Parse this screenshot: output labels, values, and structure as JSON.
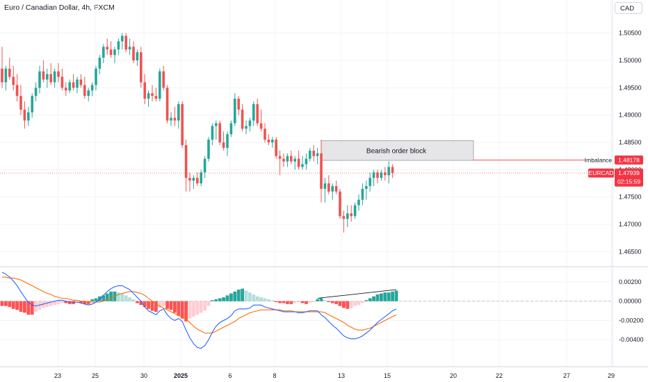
{
  "header": {
    "title": "Euro / Canadian Dollar, 4h, FXCM",
    "currency": "CAD"
  },
  "colors": {
    "up": "#26a69a",
    "down": "#ef5350",
    "grid": "#f0f3fa",
    "macd_line": "#2962ff",
    "signal_line": "#ff6d00",
    "hist_up_strong": "#26a69a",
    "hist_up_weak": "#b2dfdb",
    "hist_down_strong": "#ff5252",
    "hist_down_weak": "#ffcdd2"
  },
  "chart_data": [
    {
      "type": "candlestick",
      "title": "Euro / Canadian Dollar, 4h, FXCM",
      "y_ticks": [
        "1.50500",
        "1.50000",
        "1.49500",
        "1.49000",
        "1.48500",
        "1.48000",
        "1.47500",
        "1.47000",
        "1.46500"
      ],
      "ylim": [
        1.4625,
        1.5075
      ],
      "x_ticks": [
        "23",
        "25",
        "30",
        "2025",
        "6",
        "8",
        "13",
        "15",
        "20",
        "22",
        "27",
        "29"
      ],
      "grid": true,
      "candles_ohlc": [
        [
          1.4985,
          1.5025,
          1.495,
          1.496
        ],
        [
          1.496,
          1.499,
          1.4945,
          1.4985
        ],
        [
          1.4985,
          1.5005,
          1.4965,
          1.497
        ],
        [
          1.497,
          1.499,
          1.4945,
          1.4955
        ],
        [
          1.4955,
          1.4975,
          1.4925,
          1.4935
        ],
        [
          1.4935,
          1.4955,
          1.49,
          1.491
        ],
        [
          1.491,
          1.4925,
          1.4875,
          1.489
        ],
        [
          1.489,
          1.4915,
          1.488,
          1.4905
        ],
        [
          1.4905,
          1.494,
          1.4895,
          1.4935
        ],
        [
          1.4935,
          1.496,
          1.4925,
          1.495
        ],
        [
          1.495,
          1.499,
          1.494,
          1.498
        ],
        [
          1.498,
          1.5,
          1.496,
          1.4965
        ],
        [
          1.4965,
          1.4985,
          1.495,
          1.4975
        ],
        [
          1.4975,
          1.4995,
          1.4955,
          1.496
        ],
        [
          1.496,
          1.4985,
          1.495,
          1.498
        ],
        [
          1.498,
          1.4995,
          1.496,
          1.497
        ],
        [
          1.497,
          1.4985,
          1.4945,
          1.495
        ],
        [
          1.495,
          1.496,
          1.4935,
          1.4945
        ],
        [
          1.4945,
          1.4965,
          1.494,
          1.496
        ],
        [
          1.496,
          1.4975,
          1.4945,
          1.495
        ],
        [
          1.495,
          1.497,
          1.494,
          1.4965
        ],
        [
          1.4965,
          1.4975,
          1.495,
          1.4955
        ],
        [
          1.4955,
          1.497,
          1.493,
          1.4935
        ],
        [
          1.4935,
          1.495,
          1.4925,
          1.4945
        ],
        [
          1.4945,
          1.496,
          1.4935,
          1.4955
        ],
        [
          1.4955,
          1.499,
          1.4945,
          1.4985
        ],
        [
          1.4985,
          1.501,
          1.4975,
          1.5005
        ],
        [
          1.5005,
          1.503,
          1.4995,
          1.5025
        ],
        [
          1.5025,
          1.504,
          1.501,
          1.502
        ],
        [
          1.502,
          1.5035,
          1.5005,
          1.501
        ],
        [
          1.501,
          1.5025,
          1.4995,
          1.502
        ],
        [
          1.502,
          1.504,
          1.501,
          1.5035
        ],
        [
          1.5035,
          1.505,
          1.502,
          1.5045
        ],
        [
          1.5045,
          1.505,
          1.5015,
          1.502
        ],
        [
          1.502,
          1.504,
          1.501,
          1.5025
        ],
        [
          1.5025,
          1.5035,
          1.4995,
          1.5
        ],
        [
          1.5,
          1.502,
          1.499,
          1.5015
        ],
        [
          1.5015,
          1.5025,
          1.495,
          1.496
        ],
        [
          1.496,
          1.4975,
          1.492,
          1.493
        ],
        [
          1.493,
          1.4945,
          1.4915,
          1.494
        ],
        [
          1.494,
          1.4955,
          1.4925,
          1.4935
        ],
        [
          1.4935,
          1.495,
          1.4925,
          1.493
        ],
        [
          1.493,
          1.4985,
          1.4925,
          1.498
        ],
        [
          1.498,
          1.499,
          1.4945,
          1.495
        ],
        [
          1.495,
          1.4955,
          1.4885,
          1.489
        ],
        [
          1.489,
          1.4905,
          1.488,
          1.4895
        ],
        [
          1.4895,
          1.4915,
          1.488,
          1.489
        ],
        [
          1.489,
          1.4925,
          1.4875,
          1.492
        ],
        [
          1.492,
          1.4925,
          1.484,
          1.4845
        ],
        [
          1.4845,
          1.4855,
          1.476,
          1.4785
        ],
        [
          1.4785,
          1.4795,
          1.476,
          1.478
        ],
        [
          1.478,
          1.479,
          1.4765,
          1.4785
        ],
        [
          1.4785,
          1.4795,
          1.477,
          1.4775
        ],
        [
          1.4775,
          1.48,
          1.477,
          1.4795
        ],
        [
          1.4795,
          1.4825,
          1.4785,
          1.482
        ],
        [
          1.482,
          1.486,
          1.4815,
          1.4855
        ],
        [
          1.4855,
          1.4885,
          1.4845,
          1.488
        ],
        [
          1.488,
          1.489,
          1.4855,
          1.4885
        ],
        [
          1.4885,
          1.489,
          1.4845,
          1.485
        ],
        [
          1.485,
          1.487,
          1.4835,
          1.484
        ],
        [
          1.484,
          1.487,
          1.4825,
          1.4865
        ],
        [
          1.4865,
          1.489,
          1.486,
          1.4885
        ],
        [
          1.4885,
          1.494,
          1.488,
          1.493
        ],
        [
          1.493,
          1.4935,
          1.49,
          1.491
        ],
        [
          1.491,
          1.492,
          1.487,
          1.4875
        ],
        [
          1.4875,
          1.489,
          1.4865,
          1.488
        ],
        [
          1.488,
          1.4895,
          1.487,
          1.489
        ],
        [
          1.489,
          1.4925,
          1.488,
          1.492
        ],
        [
          1.492,
          1.493,
          1.488,
          1.4885
        ],
        [
          1.4885,
          1.491,
          1.487,
          1.4875
        ],
        [
          1.4875,
          1.4885,
          1.485,
          1.4855
        ],
        [
          1.4855,
          1.4865,
          1.4845,
          1.485
        ],
        [
          1.485,
          1.486,
          1.484,
          1.4855
        ],
        [
          1.4855,
          1.486,
          1.482,
          1.4825
        ],
        [
          1.4825,
          1.4835,
          1.479,
          1.482
        ],
        [
          1.482,
          1.483,
          1.4805,
          1.4815
        ],
        [
          1.4815,
          1.483,
          1.4805,
          1.4825
        ],
        [
          1.4825,
          1.4835,
          1.481,
          1.4815
        ],
        [
          1.4815,
          1.4825,
          1.48,
          1.482
        ],
        [
          1.482,
          1.4835,
          1.48,
          1.4805
        ],
        [
          1.4805,
          1.4825,
          1.48,
          1.481
        ],
        [
          1.481,
          1.483,
          1.48,
          1.482
        ],
        [
          1.482,
          1.484,
          1.4815,
          1.4835
        ],
        [
          1.4835,
          1.4845,
          1.4815,
          1.4825
        ],
        [
          1.4825,
          1.484,
          1.481,
          1.483
        ],
        [
          1.483,
          1.4855,
          1.474,
          1.4765
        ],
        [
          1.4765,
          1.4785,
          1.474,
          1.4775
        ],
        [
          1.4775,
          1.479,
          1.4755,
          1.476
        ],
        [
          1.476,
          1.4775,
          1.4745,
          1.477
        ],
        [
          1.477,
          1.478,
          1.4755,
          1.476
        ],
        [
          1.476,
          1.4765,
          1.471,
          1.4715
        ],
        [
          1.4715,
          1.4725,
          1.4685,
          1.471
        ],
        [
          1.471,
          1.4735,
          1.4695,
          1.472
        ],
        [
          1.472,
          1.4735,
          1.4705,
          1.4715
        ],
        [
          1.4715,
          1.474,
          1.471,
          1.4735
        ],
        [
          1.4735,
          1.4755,
          1.4725,
          1.4745
        ],
        [
          1.4745,
          1.4775,
          1.4735,
          1.4765
        ],
        [
          1.4765,
          1.478,
          1.4745,
          1.477
        ],
        [
          1.477,
          1.4795,
          1.476,
          1.4785
        ],
        [
          1.4785,
          1.48,
          1.477,
          1.4795
        ],
        [
          1.4795,
          1.48,
          1.4775,
          1.4785
        ],
        [
          1.4785,
          1.48,
          1.478,
          1.4795
        ],
        [
          1.4795,
          1.4805,
          1.478,
          1.479
        ],
        [
          1.479,
          1.4815,
          1.4775,
          1.4805
        ],
        [
          1.4805,
          1.481,
          1.4785,
          1.4794
        ]
      ],
      "last_price": 1.47939,
      "annotations": {
        "order_block": {
          "label": "Bearish order block",
          "top": 1.4853,
          "bottom": 1.4817
        },
        "imbalance": {
          "label": "Imbalance",
          "price": 1.48178,
          "price_label": "1.48178"
        },
        "symbol_label": {
          "symbol": "EURCAD",
          "price": "1.47939",
          "countdown": "02:15:59"
        }
      }
    },
    {
      "type": "macd",
      "y_ticks": [
        "0.00200",
        "0.00000",
        "-0.00200",
        "-0.00400"
      ],
      "ylim": [
        -0.0055,
        0.003
      ],
      "macd": [
        0.003,
        0.0028,
        0.0025,
        0.0021,
        0.0016,
        0.001,
        0.0004,
        -0.0001,
        -0.0004,
        -0.0005,
        -0.0004,
        -0.0003,
        -0.0002,
        -0.0001,
        0.0,
        0.0001,
        0.0001,
        0.0,
        -0.0001,
        -0.0001,
        -0.0001,
        -0.0002,
        -0.0003,
        -0.0004,
        -0.0003,
        -0.0001,
        0.0002,
        0.0006,
        0.001,
        0.0013,
        0.0015,
        0.0016,
        0.0016,
        0.0014,
        0.0012,
        0.0008,
        0.0004,
        0.0,
        -0.0006,
        -0.001,
        -0.0012,
        -0.0014,
        -0.001,
        -0.0008,
        -0.0014,
        -0.0018,
        -0.002,
        -0.0018,
        -0.0021,
        -0.003,
        -0.0038,
        -0.0044,
        -0.0048,
        -0.0049,
        -0.0046,
        -0.004,
        -0.0032,
        -0.0026,
        -0.0022,
        -0.002,
        -0.0018,
        -0.0015,
        -0.001,
        -0.0008,
        -0.0008,
        -0.0008,
        -0.0007,
        -0.0004,
        -0.0004,
        -0.0004,
        -0.0006,
        -0.0007,
        -0.0008,
        -0.0009,
        -0.001,
        -0.0011,
        -0.0011,
        -0.0011,
        -0.0011,
        -0.0012,
        -0.0012,
        -0.0011,
        -0.001,
        -0.001,
        -0.001,
        -0.0014,
        -0.0017,
        -0.0021,
        -0.0025,
        -0.0028,
        -0.0032,
        -0.0036,
        -0.0038,
        -0.0039,
        -0.0039,
        -0.0038,
        -0.0036,
        -0.0033,
        -0.003,
        -0.0026,
        -0.0022,
        -0.0019,
        -0.0016,
        -0.0013,
        -0.001,
        -0.0008
      ],
      "signal": [
        0.0025,
        0.0025,
        0.0024,
        0.0024,
        0.0023,
        0.0022,
        0.002,
        0.0018,
        0.0016,
        0.0014,
        0.0012,
        0.001,
        0.0008,
        0.0007,
        0.0005,
        0.0004,
        0.0003,
        0.0003,
        0.0002,
        0.0001,
        0.0001,
        0.0,
        0.0,
        -0.0001,
        -0.0001,
        -0.0001,
        -0.0001,
        0.0,
        0.0002,
        0.0003,
        0.0005,
        0.0007,
        0.0008,
        0.0009,
        0.001,
        0.001,
        0.0009,
        0.0008,
        0.0006,
        0.0003,
        0.0,
        -0.0003,
        -0.0005,
        -0.0007,
        -0.0009,
        -0.0011,
        -0.0013,
        -0.0015,
        -0.0016,
        -0.0019,
        -0.0022,
        -0.0026,
        -0.0029,
        -0.0031,
        -0.0033,
        -0.0033,
        -0.0033,
        -0.0031,
        -0.0029,
        -0.0027,
        -0.0025,
        -0.0023,
        -0.0021,
        -0.0018,
        -0.0016,
        -0.0014,
        -0.0012,
        -0.0011,
        -0.001,
        -0.0009,
        -0.0009,
        -0.0009,
        -0.0009,
        -0.0009,
        -0.0009,
        -0.001,
        -0.001,
        -0.001,
        -0.0011,
        -0.0011,
        -0.0011,
        -0.0011,
        -0.0011,
        -0.0011,
        -0.0011,
        -0.0011,
        -0.0012,
        -0.0014,
        -0.0016,
        -0.0018,
        -0.002,
        -0.0022,
        -0.0025,
        -0.0027,
        -0.0029,
        -0.003,
        -0.003,
        -0.0029,
        -0.0028,
        -0.0026,
        -0.0024,
        -0.0022,
        -0.002,
        -0.0018,
        -0.0016,
        -0.0014
      ],
      "histogram": [
        -0.0005,
        -0.0005,
        -0.0006,
        -0.0008,
        -0.0009,
        -0.0011,
        -0.0012,
        -0.0014,
        -0.0014,
        -0.0011,
        -0.0009,
        -0.0007,
        -0.0006,
        -0.0005,
        -0.0004,
        -0.0003,
        -0.0002,
        -0.0002,
        -0.0003,
        -0.0003,
        -0.0002,
        -0.0002,
        -0.0003,
        -0.0003,
        0.0002,
        0.0003,
        0.0005,
        0.0006,
        0.0008,
        0.001,
        0.001,
        0.0009,
        0.0008,
        0.0006,
        0.0004,
        0.0002,
        -0.0002,
        -0.0004,
        -0.0006,
        -0.0008,
        -0.001,
        -0.0011,
        -0.0007,
        -0.0005,
        -0.0008,
        -0.0009,
        -0.0012,
        -0.0015,
        -0.0018,
        -0.0021,
        -0.0018,
        -0.0016,
        -0.0014,
        -0.0012,
        -0.001,
        -0.0005,
        0.0001,
        0.0002,
        0.0003,
        0.0004,
        0.0006,
        0.0008,
        0.001,
        0.0012,
        0.0013,
        0.0011,
        0.0009,
        0.0007,
        0.0005,
        0.0004,
        0.0003,
        0.0002,
        0.0001,
        -0.0001,
        -0.0002,
        -0.0002,
        -0.0003,
        -0.0003,
        -0.0002,
        -0.0001,
        -0.0002,
        -0.0003,
        -0.0002,
        -0.0001,
        0.0002,
        0.0003,
        0.0001,
        -0.0001,
        -0.0002,
        -0.0003,
        -0.0005,
        -0.0007,
        -0.0008,
        -0.0007,
        -0.0005,
        -0.0004,
        -0.0002,
        0.0001,
        0.0003,
        0.0005,
        0.0007,
        0.0008,
        0.0009,
        0.0009,
        0.001,
        0.0011
      ],
      "trendline": {
        "from_bar": 84,
        "to_bar": 105,
        "from_value": 0.0003,
        "to_value": 0.0012
      }
    }
  ]
}
